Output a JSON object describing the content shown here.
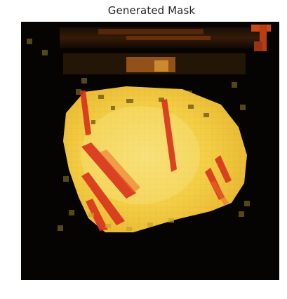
{
  "figure": {
    "title": "Generated Mask"
  },
  "image": {
    "description_icon": "generated-mask-image",
    "colors": {
      "background": "#050402",
      "mask_yellow": "#f4cf45",
      "mask_light": "#f7df6a",
      "stripe_red": "#d7321c",
      "edge_orange": "#c96a1a",
      "noise_olive": "#6a5a18"
    }
  }
}
